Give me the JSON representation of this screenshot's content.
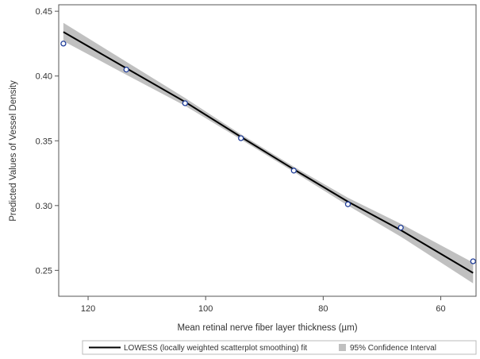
{
  "chart_data": {
    "type": "scatter",
    "xlabel": "Mean retinal nerve fiber layer thickness (µm)",
    "ylabel": "Predicted Values of Vessel Density",
    "x_reversed": true,
    "xlim": [
      125,
      54
    ],
    "ylim": [
      0.23,
      0.455
    ],
    "xticks": [
      120,
      100,
      80,
      60
    ],
    "xtick_labels": [
      "120",
      "100",
      "80",
      "60"
    ],
    "yticks": [
      0.25,
      0.3,
      0.35,
      0.4,
      0.45
    ],
    "ytick_labels": [
      "0.25",
      "0.30",
      "0.35",
      "0.40",
      "0.45"
    ],
    "grid": false,
    "legend_position": "bottom",
    "points": {
      "x": [
        124.2,
        113.5,
        103.5,
        94.0,
        85.0,
        75.8,
        66.8,
        54.5
      ],
      "y": [
        0.425,
        0.405,
        0.379,
        0.352,
        0.327,
        0.301,
        0.283,
        0.257
      ],
      "color": "#1f3d99"
    },
    "lowess": {
      "name": "LOWESS (locally weighted scatterplot smoothing) fit",
      "color": "#000000",
      "x": [
        124.2,
        113.5,
        103.5,
        94.0,
        85.0,
        75.8,
        66.8,
        54.5
      ],
      "y": [
        0.434,
        0.406,
        0.38,
        0.353,
        0.328,
        0.303,
        0.281,
        0.248
      ]
    },
    "ci": {
      "name": "95% Confidence Interval",
      "color": "#c0c0c0",
      "x": [
        124.2,
        113.5,
        103.5,
        94.0,
        85.0,
        75.8,
        66.8,
        54.5
      ],
      "lower": [
        0.427,
        0.401,
        0.377,
        0.351,
        0.326,
        0.3,
        0.276,
        0.24
      ],
      "upper": [
        0.441,
        0.411,
        0.383,
        0.355,
        0.33,
        0.306,
        0.286,
        0.256
      ]
    }
  }
}
